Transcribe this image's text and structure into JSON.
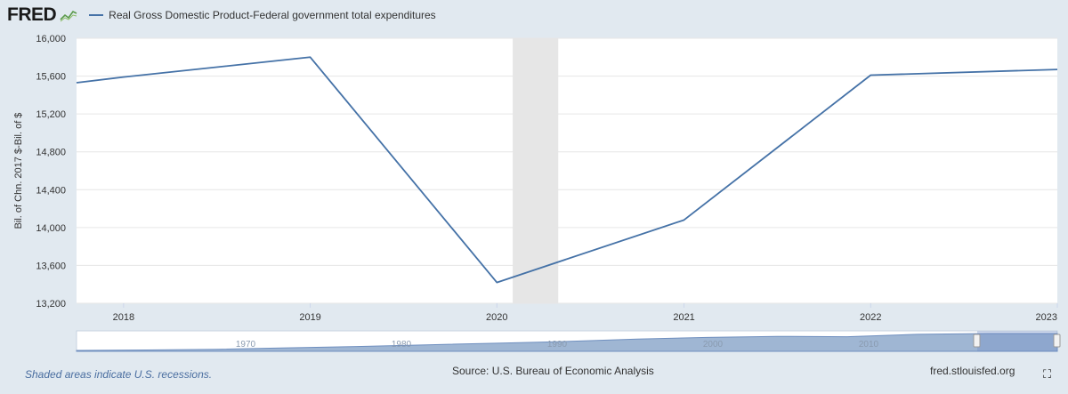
{
  "header": {
    "logo": "FRED",
    "legend_label": "Real Gross Domestic Product-Federal government total expenditures"
  },
  "colors": {
    "series": "#4572a7",
    "plot_bg": "#ffffff",
    "page_bg": "#e1e9f0",
    "recession": "#e6e6e6",
    "navigator_fill": "#9fb6d3"
  },
  "chart_data": {
    "type": "line",
    "title": "",
    "ylabel": "Bil. of Chn. 2017 $-Bil. of $",
    "xlabel": "",
    "x": [
      "2017-10-01",
      "2018-01-01",
      "2019-01-01",
      "2020-01-01",
      "2021-01-01",
      "2022-01-01",
      "2023-01-01"
    ],
    "series": [
      {
        "name": "Real Gross Domestic Product-Federal government total expenditures",
        "values": [
          15530,
          15590,
          15800,
          13420,
          14080,
          15610,
          15670
        ]
      }
    ],
    "x_ticks": [
      "2018",
      "2019",
      "2020",
      "2021",
      "2022",
      "2023"
    ],
    "y_ticks": [
      13200,
      13600,
      14000,
      14400,
      14800,
      15200,
      15600,
      16000
    ],
    "y_tick_labels": [
      "13,200",
      "13,600",
      "14,000",
      "14,400",
      "14,800",
      "15,200",
      "15,600",
      "16,000"
    ],
    "xlim": [
      "2017-10-01",
      "2023-01-01"
    ],
    "ylim": [
      13200,
      16000
    ],
    "recession_shading": [
      {
        "start": "2020-02-01",
        "end": "2020-04-30"
      }
    ],
    "grid": true,
    "navigator": {
      "labels": [
        "1970",
        "1980",
        "1990",
        "2000",
        "2010"
      ],
      "values": [
        0.05,
        0.08,
        0.12,
        0.2,
        0.28,
        0.38,
        0.48,
        0.58,
        0.72,
        0.82,
        0.88,
        0.86,
        1.0,
        1.05,
        1.05
      ]
    }
  },
  "footer": {
    "note": "Shaded areas indicate U.S. recessions.",
    "source": "Source: U.S. Bureau of Economic Analysis",
    "site": "fred.stlouisfed.org"
  },
  "icons": {
    "fullscreen": "⛶"
  }
}
